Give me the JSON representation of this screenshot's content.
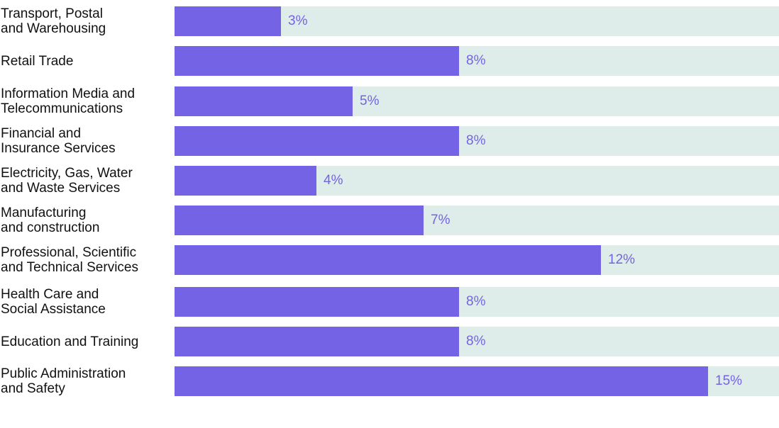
{
  "chart_data": {
    "type": "bar",
    "orientation": "horizontal",
    "categories": [
      "Transport, Postal\nand Warehousing",
      "Retail Trade",
      "Information Media and\nTelecommunications",
      "Financial and\nInsurance Services",
      "Electricity, Gas, Water\nand Waste Services",
      "Manufacturing\nand construction",
      "Professional, Scientific\nand Technical Services",
      "Health Care and\nSocial Assistance",
      "Education and Training",
      "Public Administration\nand Safety"
    ],
    "values": [
      3,
      8,
      5,
      8,
      4,
      7,
      12,
      8,
      8,
      15
    ],
    "value_labels": [
      "3%",
      "8%",
      "5%",
      "8%",
      "4%",
      "7%",
      "12%",
      "8%",
      "8%",
      "15%"
    ],
    "unit": "%",
    "xlim": [
      0,
      17
    ],
    "grid": false,
    "legend": "none"
  },
  "colors": {
    "bar": "#7463e5",
    "track": "#deede9",
    "value_label": "#7463e5",
    "category_label": "#111111"
  }
}
